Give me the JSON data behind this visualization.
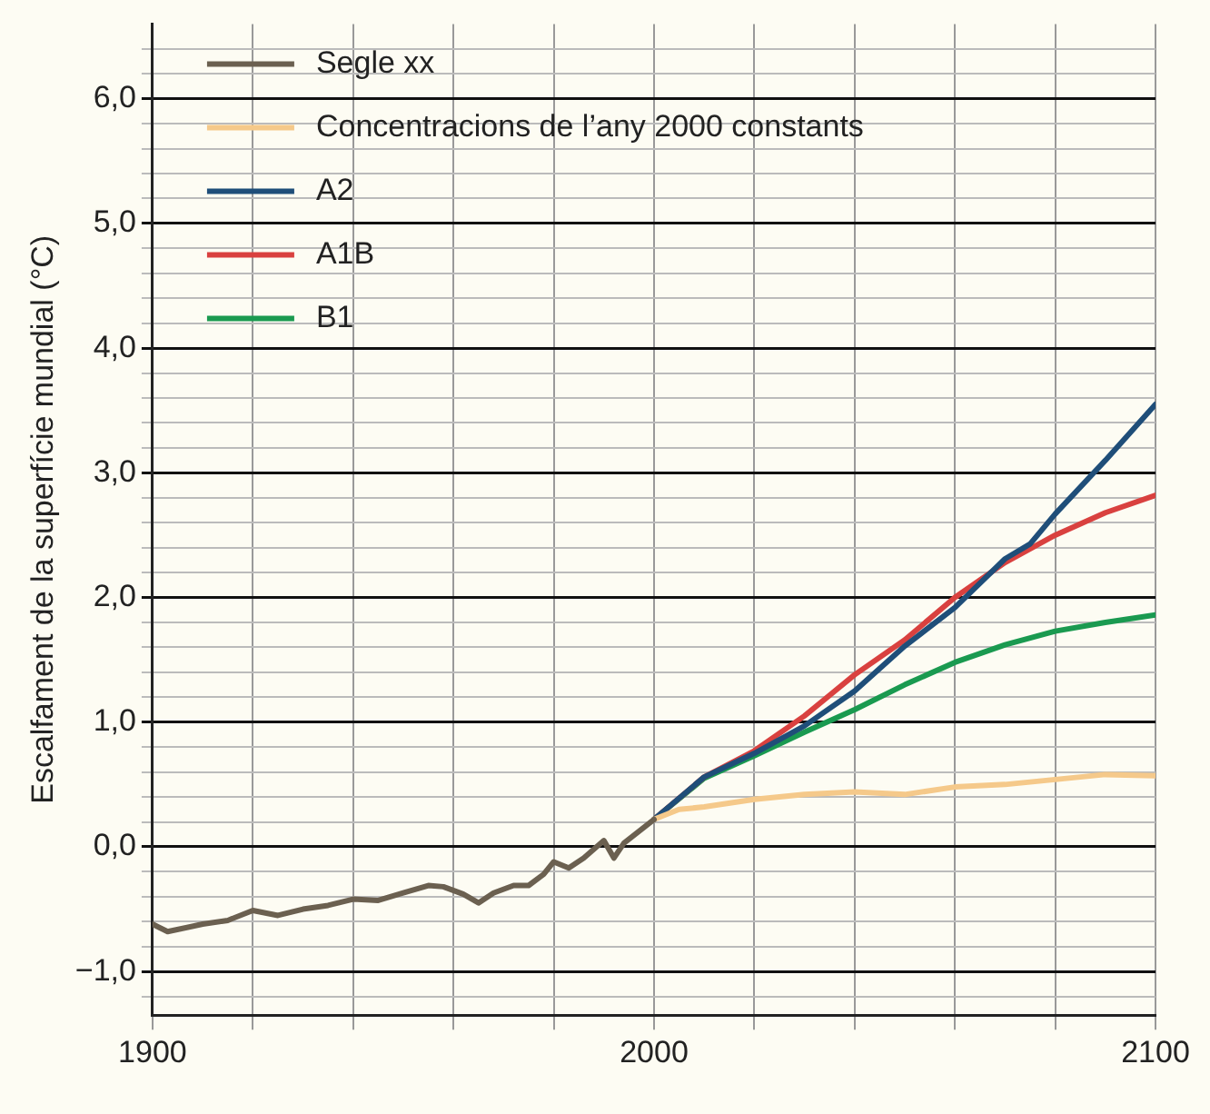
{
  "chart_data": {
    "type": "line",
    "ylabel": "Escalfament de la superfície mundial (°C)",
    "xlim": [
      1900,
      2100
    ],
    "xticks": [
      1900,
      {
        "value": 1920,
        "label": null
      },
      {
        "value": 1940,
        "label": null
      },
      {
        "value": 1960,
        "label": null
      },
      {
        "value": 1980,
        "label": null
      },
      2000,
      {
        "value": 2020,
        "label": null
      },
      {
        "value": 2040,
        "label": null
      },
      {
        "value": 2060,
        "label": null
      },
      {
        "value": 2080,
        "label": null
      },
      2100
    ],
    "ylim": [
      -1.35,
      6.6
    ],
    "yticks": [
      {
        "value": -1.2,
        "label": null
      },
      {
        "value": -1,
        "label": "−1,0"
      },
      {
        "value": -0.8,
        "label": null
      },
      {
        "value": -0.6,
        "label": null
      },
      {
        "value": -0.4,
        "label": null
      },
      {
        "value": -0.2,
        "label": null
      },
      {
        "value": 0,
        "label": "0,0"
      },
      {
        "value": 0.2,
        "label": null
      },
      {
        "value": 0.4,
        "label": null
      },
      {
        "value": 0.6,
        "label": null
      },
      {
        "value": 0.8,
        "label": null
      },
      {
        "value": 1,
        "label": "1,0"
      },
      {
        "value": 1.2,
        "label": null
      },
      {
        "value": 1.4,
        "label": null
      },
      {
        "value": 1.6,
        "label": null
      },
      {
        "value": 1.8,
        "label": null
      },
      {
        "value": 2,
        "label": "2,0"
      },
      {
        "value": 2.2,
        "label": null
      },
      {
        "value": 2.4,
        "label": null
      },
      {
        "value": 2.6,
        "label": null
      },
      {
        "value": 2.8,
        "label": null
      },
      {
        "value": 3,
        "label": "3,0"
      },
      {
        "value": 3.2,
        "label": null
      },
      {
        "value": 3.4,
        "label": null
      },
      {
        "value": 3.6,
        "label": null
      },
      {
        "value": 3.8,
        "label": null
      },
      {
        "value": 4,
        "label": "4,0"
      },
      {
        "value": 4.2,
        "label": null
      },
      {
        "value": 4.4,
        "label": null
      },
      {
        "value": 4.6,
        "label": null
      },
      {
        "value": 4.8,
        "label": null
      },
      {
        "value": 5,
        "label": "5,0"
      },
      {
        "value": 5.2,
        "label": null
      },
      {
        "value": 5.4,
        "label": null
      },
      {
        "value": 5.6,
        "label": null
      },
      {
        "value": 5.8,
        "label": null
      },
      {
        "value": 6,
        "label": "6,0"
      },
      {
        "value": 6.2,
        "label": null
      },
      {
        "value": 6.4,
        "label": null
      }
    ],
    "grid": true,
    "legend": "top left",
    "marker": "none",
    "line_style": "solid",
    "series": [
      {
        "name": "Segle xx",
        "color": "#6b6050",
        "x": [
          1900,
          1903,
          1910,
          1915,
          1920,
          1925,
          1930,
          1935,
          1940,
          1945,
          1950,
          1955,
          1958,
          1962,
          1965,
          1968,
          1972,
          1975,
          1978,
          1980,
          1983,
          1986,
          1990,
          1992,
          1994,
          2000
        ],
        "values": [
          -0.62,
          -0.68,
          -0.62,
          -0.59,
          -0.51,
          -0.55,
          -0.5,
          -0.47,
          -0.42,
          -0.43,
          -0.37,
          -0.31,
          -0.32,
          -0.38,
          -0.45,
          -0.37,
          -0.31,
          -0.31,
          -0.22,
          -0.12,
          -0.17,
          -0.09,
          0.05,
          -0.09,
          0.03,
          0.22
        ]
      },
      {
        "name": "Concentracions de l’any 2000 constants",
        "color": "#f5c98a",
        "x": [
          2000,
          2005,
          2010,
          2020,
          2030,
          2040,
          2050,
          2060,
          2070,
          2080,
          2090,
          2100
        ],
        "values": [
          0.22,
          0.3,
          0.32,
          0.38,
          0.42,
          0.44,
          0.42,
          0.48,
          0.5,
          0.54,
          0.58,
          0.57
        ]
      },
      {
        "name": "A2",
        "color": "#1f4e79",
        "x": [
          2000,
          2010,
          2020,
          2030,
          2040,
          2050,
          2060,
          2070,
          2075,
          2080,
          2090,
          2100
        ],
        "values": [
          0.22,
          0.56,
          0.75,
          0.97,
          1.25,
          1.61,
          1.92,
          2.31,
          2.43,
          2.67,
          3.1,
          3.55
        ]
      },
      {
        "name": "A1B",
        "color": "#d9413f",
        "x": [
          2000,
          2010,
          2020,
          2030,
          2040,
          2050,
          2060,
          2070,
          2080,
          2090,
          2100
        ],
        "values": [
          0.22,
          0.56,
          0.77,
          1.05,
          1.38,
          1.66,
          2.0,
          2.28,
          2.5,
          2.68,
          2.82
        ]
      },
      {
        "name": "B1",
        "color": "#1a9a50",
        "x": [
          2000,
          2010,
          2020,
          2030,
          2040,
          2050,
          2060,
          2070,
          2080,
          2090,
          2100
        ],
        "values": [
          0.22,
          0.55,
          0.73,
          0.92,
          1.1,
          1.3,
          1.48,
          1.62,
          1.73,
          1.8,
          1.86
        ]
      }
    ]
  }
}
